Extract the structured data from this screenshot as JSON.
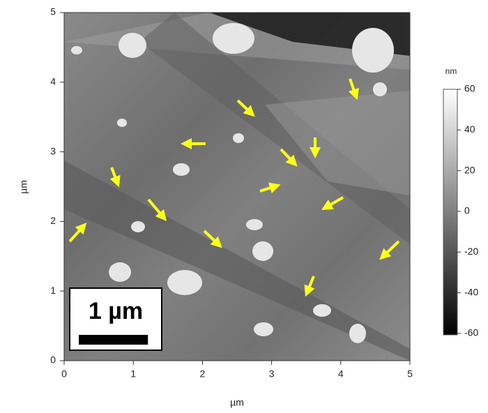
{
  "chart_data": {
    "type": "heatmap",
    "xlabel": "µm",
    "ylabel": "µm",
    "xlim": [
      0,
      5
    ],
    "ylim": [
      0,
      5
    ],
    "xticks": [
      0,
      1,
      2,
      3,
      4,
      5
    ],
    "yticks": [
      0,
      1,
      2,
      3,
      4,
      5
    ],
    "colorbar": {
      "label": "nm",
      "lim": [
        -60,
        60
      ],
      "ticks": [
        -60,
        -40,
        -20,
        0,
        20,
        40,
        60
      ]
    },
    "scale_bar": {
      "label": "1 µm"
    }
  }
}
